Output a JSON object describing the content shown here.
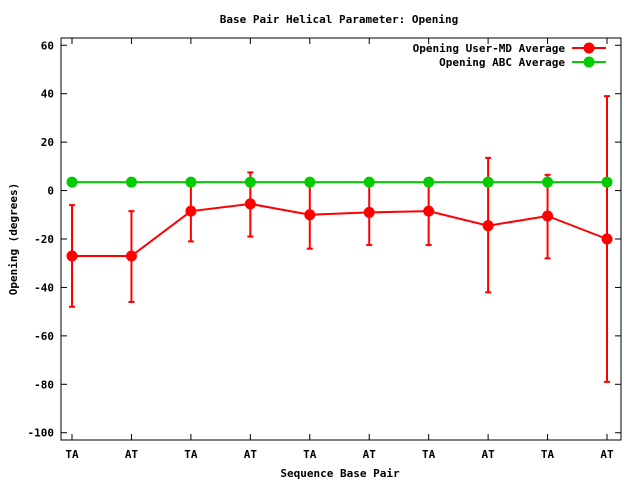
{
  "chart_data": {
    "type": "line",
    "title": "Base Pair Helical Parameter: Opening",
    "xlabel": "Sequence Base Pair",
    "ylabel": "Opening (degrees)",
    "categories": [
      "TA",
      "AT",
      "TA",
      "AT",
      "TA",
      "AT",
      "TA",
      "AT",
      "TA",
      "AT"
    ],
    "ylim": [
      -103,
      63
    ],
    "yticks": [
      -100,
      -80,
      -60,
      -40,
      -20,
      0,
      20,
      40,
      60
    ],
    "legend_position": "top-right",
    "grid": false,
    "series": [
      {
        "name": "Opening User-MD Average",
        "color": "#ff0000",
        "values": [
          -27,
          -27,
          -8.5,
          -5.5,
          -10,
          -9,
          -8.5,
          -14.5,
          -10.5,
          -20
        ],
        "error_low": [
          -48,
          -46,
          -21,
          -19,
          -24,
          -22.5,
          -22.5,
          -42,
          -28,
          -79
        ],
        "error_high": [
          -6,
          -8.5,
          3,
          7.5,
          3,
          3,
          4.5,
          13.5,
          6.5,
          39
        ]
      },
      {
        "name": "Opening ABC Average",
        "color": "#00cc00",
        "values": [
          3.5,
          3.5,
          3.5,
          3.5,
          3.5,
          3.5,
          3.5,
          3.5,
          3.5,
          3.5
        ]
      }
    ]
  }
}
